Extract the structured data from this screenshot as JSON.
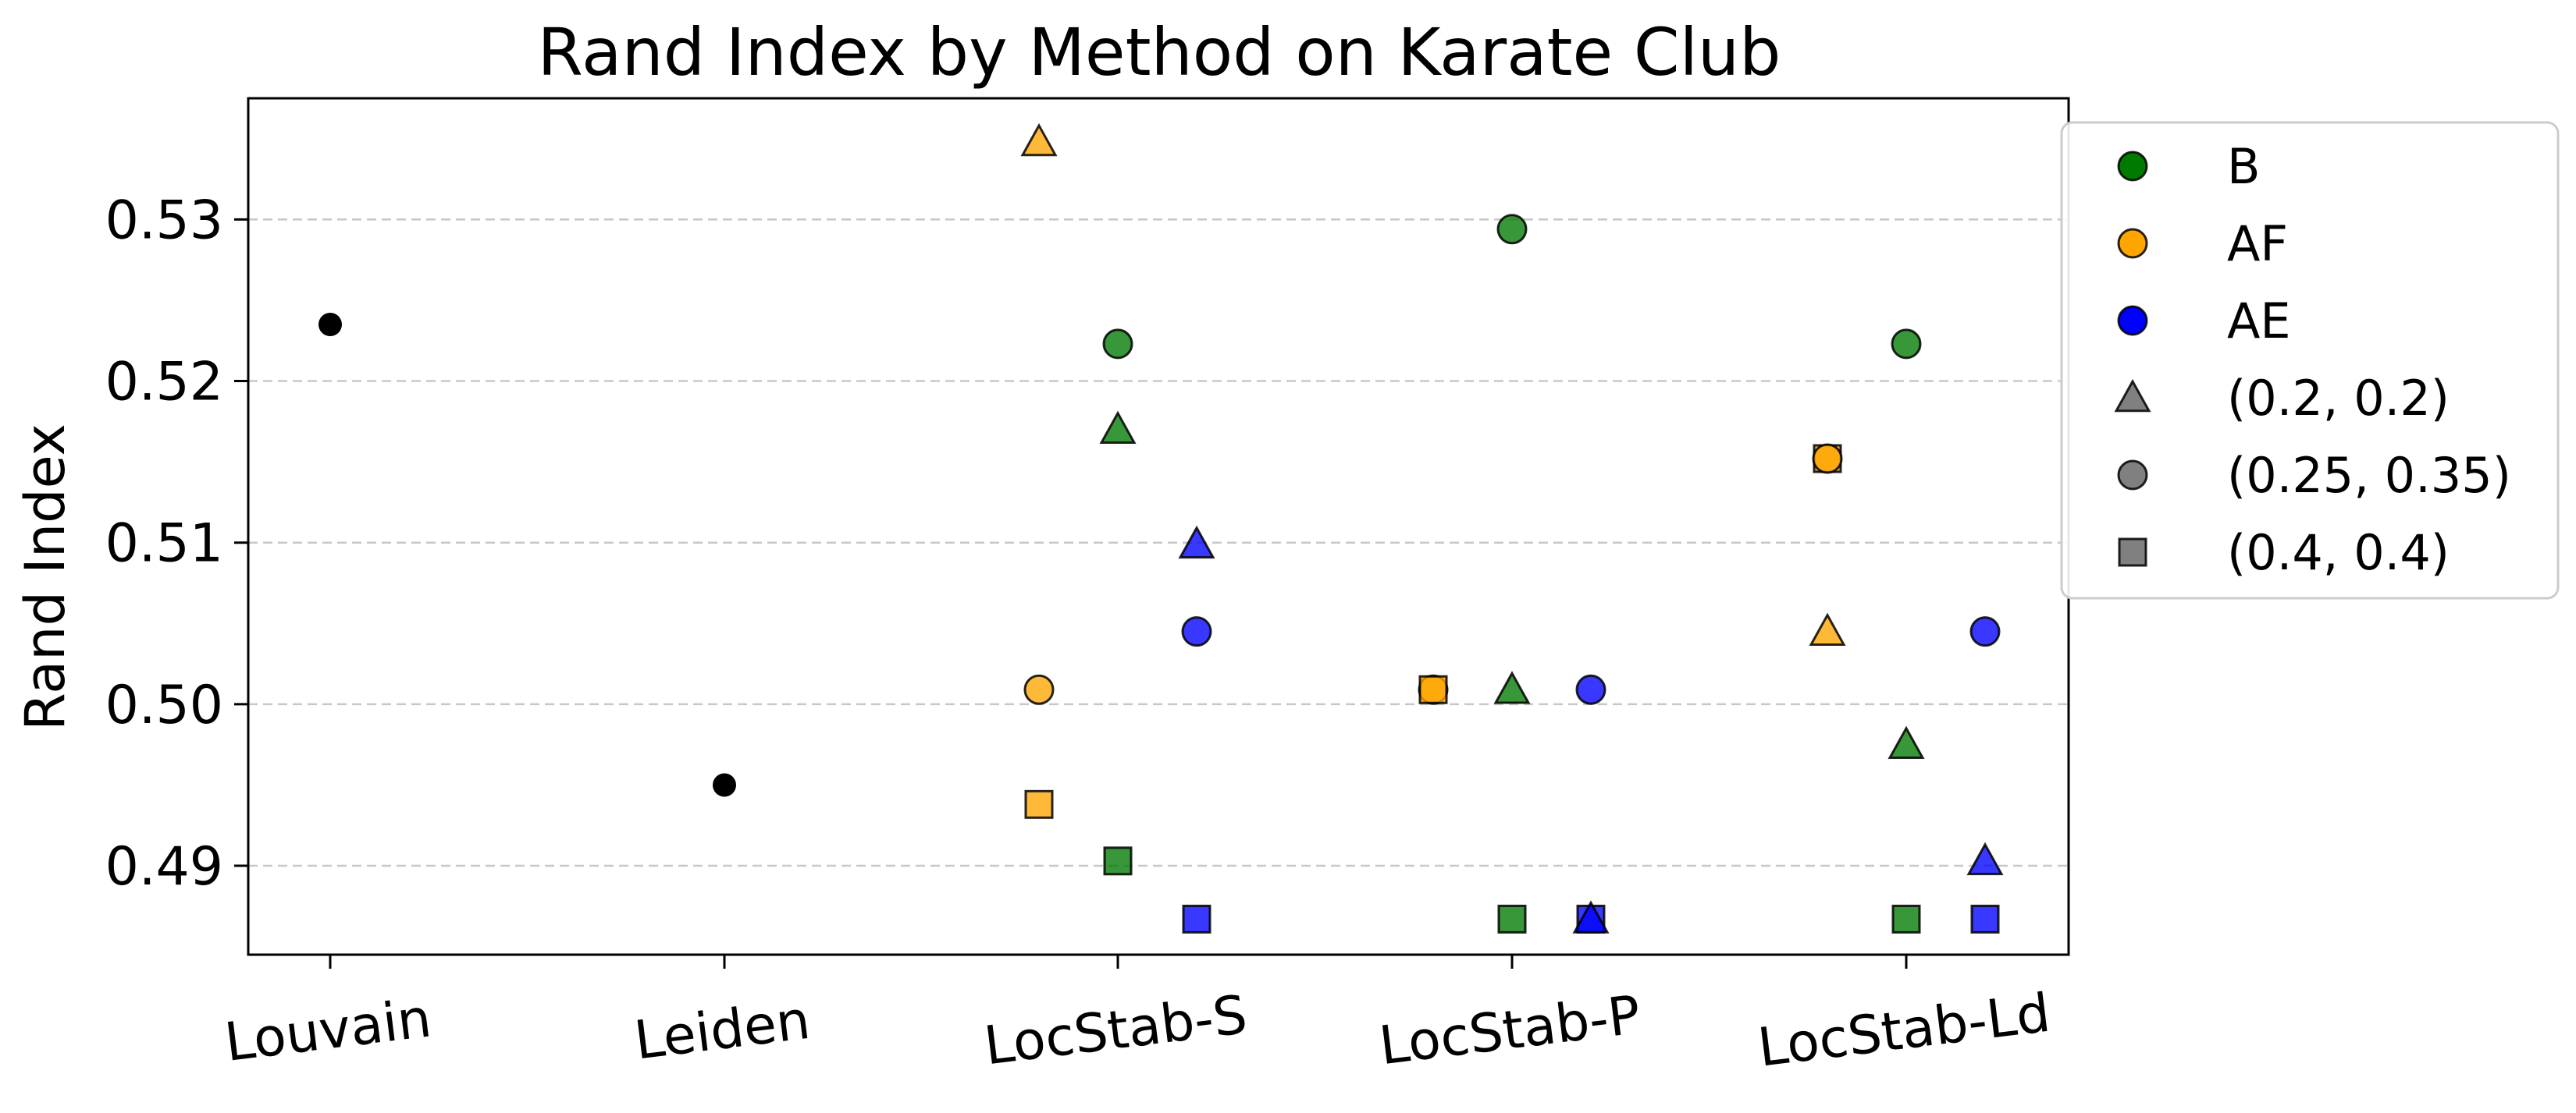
{
  "chart_data": {
    "type": "scatter",
    "title": "Rand Index by Method on Karate Club",
    "xlabel": "",
    "ylabel": "Rand Index",
    "categories": [
      "Louvain",
      "Leiden",
      "LocStab-S",
      "LocStab-P",
      "LocStab-Ld"
    ],
    "ylim": [
      0.4845,
      0.5375
    ],
    "yticks": [
      0.49,
      0.5,
      0.51,
      0.52,
      0.53
    ],
    "ytick_labels": [
      "0.49",
      "0.50",
      "0.51",
      "0.52",
      "0.53"
    ],
    "grid": "y-dashed",
    "legend_position": "outside-right",
    "colors": {
      "B": "#007a00",
      "AF": "#ffa500",
      "AE": "#0000ff",
      "baseline": "#000000",
      "legend_marker": "#808080"
    },
    "legend": [
      {
        "label": "B",
        "kind": "color",
        "color": "#007a00",
        "marker": "circle"
      },
      {
        "label": "AF",
        "kind": "color",
        "color": "#ffa500",
        "marker": "circle"
      },
      {
        "label": "AE",
        "kind": "color",
        "color": "#0000ff",
        "marker": "circle"
      },
      {
        "label": "(0.2, 0.2)",
        "kind": "marker",
        "color": "#808080",
        "marker": "triangle"
      },
      {
        "label": "(0.25, 0.35)",
        "kind": "marker",
        "color": "#808080",
        "marker": "circle"
      },
      {
        "label": "(0.4, 0.4)",
        "kind": "marker",
        "color": "#808080",
        "marker": "square"
      }
    ],
    "series": [
      {
        "name": "Louvain",
        "color_key": "baseline",
        "marker": "dot",
        "points": [
          {
            "category": "Louvain",
            "y": 0.5235
          }
        ]
      },
      {
        "name": "Leiden",
        "color_key": "baseline",
        "marker": "dot",
        "points": [
          {
            "category": "Leiden",
            "y": 0.495
          }
        ]
      },
      {
        "name": "B",
        "color_key": "B",
        "points": [
          {
            "category": "LocStab-S",
            "marker": "circle",
            "y": 0.5223
          },
          {
            "category": "LocStab-S",
            "marker": "triangle",
            "y": 0.517
          },
          {
            "category": "LocStab-S",
            "marker": "square",
            "y": 0.4903
          },
          {
            "category": "LocStab-P",
            "marker": "circle",
            "y": 0.5294
          },
          {
            "category": "LocStab-P",
            "marker": "triangle",
            "y": 0.5009
          },
          {
            "category": "LocStab-P",
            "marker": "square",
            "y": 0.4867
          },
          {
            "category": "LocStab-Ld",
            "marker": "circle",
            "y": 0.5223
          },
          {
            "category": "LocStab-Ld",
            "marker": "triangle",
            "y": 0.4975
          },
          {
            "category": "LocStab-Ld",
            "marker": "square",
            "y": 0.4867
          }
        ]
      },
      {
        "name": "AF",
        "color_key": "AF",
        "points": [
          {
            "category": "LocStab-S",
            "marker": "triangle",
            "y": 0.5348
          },
          {
            "category": "LocStab-S",
            "marker": "circle",
            "y": 0.5009
          },
          {
            "category": "LocStab-S",
            "marker": "square",
            "y": 0.4938
          },
          {
            "category": "LocStab-P",
            "marker": "circle",
            "y": 0.5009
          },
          {
            "category": "LocStab-P",
            "marker": "square",
            "y": 0.5009
          },
          {
            "category": "LocStab-Ld",
            "marker": "square",
            "y": 0.5152
          },
          {
            "category": "LocStab-Ld",
            "marker": "circle",
            "y": 0.5152
          },
          {
            "category": "LocStab-Ld",
            "marker": "triangle",
            "y": 0.5045
          }
        ]
      },
      {
        "name": "AE",
        "color_key": "AE",
        "points": [
          {
            "category": "LocStab-S",
            "marker": "triangle",
            "y": 0.5099
          },
          {
            "category": "LocStab-S",
            "marker": "circle",
            "y": 0.5045
          },
          {
            "category": "LocStab-S",
            "marker": "square",
            "y": 0.4867
          },
          {
            "category": "LocStab-P",
            "marker": "circle",
            "y": 0.5009
          },
          {
            "category": "LocStab-P",
            "marker": "square",
            "y": 0.4867
          },
          {
            "category": "LocStab-P",
            "marker": "triangle",
            "y": 0.4867
          },
          {
            "category": "LocStab-Ld",
            "marker": "circle",
            "y": 0.5045
          },
          {
            "category": "LocStab-Ld",
            "marker": "triangle",
            "y": 0.4903
          },
          {
            "category": "LocStab-Ld",
            "marker": "square",
            "y": 0.4867
          }
        ]
      }
    ]
  }
}
